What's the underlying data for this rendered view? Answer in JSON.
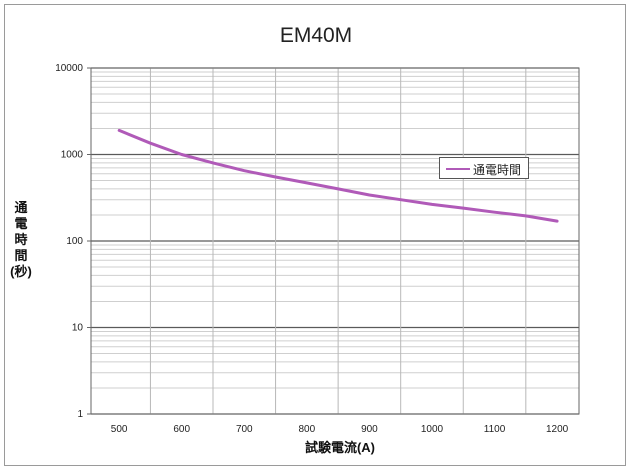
{
  "chart_data": {
    "type": "line",
    "title": "EM40M",
    "xlabel": "試験電流(A)",
    "ylabel": "通\n電\n時\n間\n(秒)",
    "x_ticks": [
      500,
      600,
      700,
      800,
      900,
      1000,
      1100,
      1200
    ],
    "y_ticks": [
      "1",
      "10",
      "100",
      "1000",
      "10000"
    ],
    "xlim": [
      455,
      1235
    ],
    "ylim": [
      1,
      10000
    ],
    "yscale": "log",
    "grid": true,
    "legend_position": "right",
    "series": [
      {
        "name": "通電時間",
        "color": "#b05ab8",
        "x": [
          500,
          550,
          600,
          650,
          700,
          750,
          800,
          850,
          900,
          950,
          1000,
          1050,
          1100,
          1150,
          1200
        ],
        "y": [
          1900,
          1350,
          1000,
          800,
          650,
          550,
          470,
          400,
          340,
          300,
          265,
          240,
          215,
          195,
          170
        ]
      }
    ]
  }
}
